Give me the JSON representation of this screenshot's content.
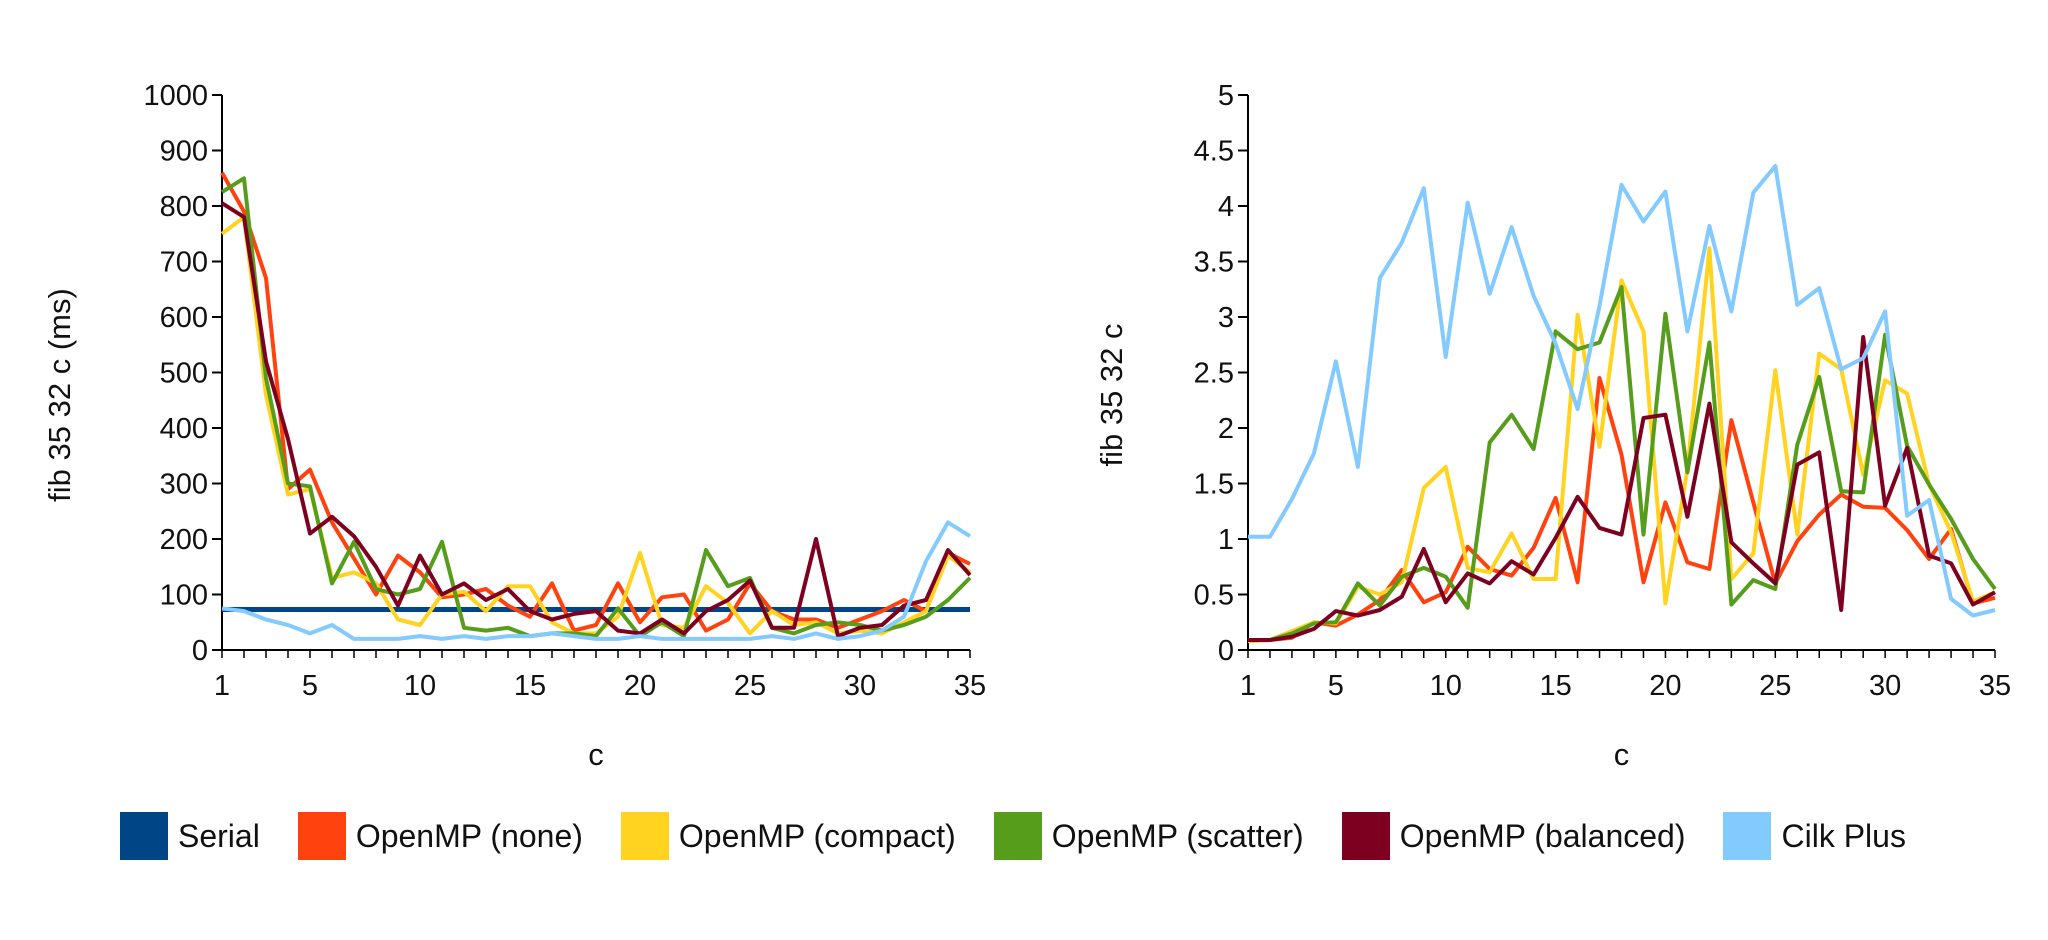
{
  "colors": {
    "Serial": "#004586",
    "OpenMP (none)": "#ff420e",
    "OpenMP (compact)": "#ffd320",
    "OpenMP (scatter)": "#579d1c",
    "OpenMP (balanced)": "#7e0021",
    "Cilk Plus": "#83caff"
  },
  "legend": [
    "Serial",
    "OpenMP (none)",
    "OpenMP (compact)",
    "OpenMP (scatter)",
    "OpenMP (balanced)",
    "Cilk Plus"
  ],
  "chart_data": [
    {
      "type": "line",
      "xlabel": "c",
      "ylabel": "fib 35 32 c (ms)",
      "xlim": [
        1,
        35
      ],
      "ylim": [
        0,
        1000
      ],
      "xticks": [
        1,
        5,
        10,
        15,
        20,
        25,
        30,
        35
      ],
      "yticks": [
        0,
        100,
        200,
        300,
        400,
        500,
        600,
        700,
        800,
        900,
        1000
      ],
      "grid": false,
      "legend_position": "bottom",
      "x": [
        1,
        2,
        3,
        4,
        5,
        6,
        7,
        8,
        9,
        10,
        11,
        12,
        13,
        14,
        15,
        16,
        17,
        18,
        19,
        20,
        21,
        22,
        23,
        24,
        25,
        26,
        27,
        28,
        29,
        30,
        31,
        32,
        33,
        34,
        35
      ],
      "series": [
        {
          "name": "Serial",
          "values": [
            73,
            73,
            73,
            73,
            73,
            73,
            73,
            73,
            73,
            73,
            73,
            73,
            73,
            73,
            73,
            73,
            73,
            73,
            73,
            73,
            73,
            73,
            73,
            73,
            73,
            73,
            73,
            73,
            73,
            73,
            73,
            73,
            73,
            73,
            73
          ]
        },
        {
          "name": "OpenMP (none)",
          "values": [
            860,
            790,
            670,
            290,
            325,
            230,
            165,
            100,
            170,
            140,
            95,
            100,
            110,
            80,
            60,
            120,
            35,
            45,
            120,
            50,
            95,
            100,
            35,
            55,
            120,
            70,
            55,
            55,
            40,
            55,
            70,
            90,
            70,
            175,
            155
          ]
        },
        {
          "name": "OpenMP (compact)",
          "values": [
            750,
            780,
            460,
            280,
            290,
            130,
            140,
            120,
            55,
            45,
            100,
            105,
            70,
            115,
            115,
            50,
            30,
            30,
            60,
            175,
            45,
            40,
            115,
            85,
            30,
            70,
            45,
            50,
            30,
            35,
            30,
            50,
            70,
            170,
            140
          ]
        },
        {
          "name": "OpenMP (scatter)",
          "values": [
            825,
            850,
            490,
            300,
            295,
            120,
            195,
            110,
            100,
            110,
            195,
            40,
            35,
            40,
            25,
            30,
            30,
            25,
            75,
            25,
            50,
            25,
            180,
            115,
            130,
            40,
            30,
            45,
            50,
            45,
            35,
            45,
            60,
            90,
            130
          ]
        },
        {
          "name": "OpenMP (balanced)",
          "values": [
            805,
            780,
            520,
            380,
            210,
            240,
            205,
            150,
            80,
            170,
            100,
            120,
            90,
            110,
            70,
            55,
            65,
            70,
            35,
            30,
            55,
            30,
            70,
            90,
            125,
            40,
            40,
            200,
            25,
            40,
            45,
            80,
            90,
            180,
            135
          ]
        },
        {
          "name": "Cilk Plus",
          "values": [
            75,
            70,
            55,
            45,
            30,
            45,
            20,
            20,
            20,
            25,
            20,
            25,
            20,
            25,
            25,
            30,
            25,
            20,
            20,
            25,
            20,
            20,
            20,
            20,
            20,
            25,
            20,
            30,
            20,
            25,
            35,
            60,
            160,
            230,
            205
          ]
        }
      ]
    },
    {
      "type": "line",
      "xlabel": "c",
      "ylabel": "fib 35 32 c",
      "xlim": [
        1,
        35
      ],
      "ylim": [
        0,
        5
      ],
      "xticks": [
        1,
        5,
        10,
        15,
        20,
        25,
        30,
        35
      ],
      "yticks": [
        0,
        0.5,
        1,
        1.5,
        2,
        2.5,
        3,
        3.5,
        4,
        4.5,
        5
      ],
      "grid": false,
      "legend_position": "bottom",
      "x": [
        1,
        2,
        3,
        4,
        5,
        6,
        7,
        8,
        9,
        10,
        11,
        12,
        13,
        14,
        15,
        16,
        17,
        18,
        19,
        20,
        21,
        22,
        23,
        24,
        25,
        26,
        27,
        28,
        29,
        30,
        31,
        32,
        33,
        34,
        35
      ],
      "series": [
        {
          "name": "OpenMP (none)",
          "values": [
            0.08,
            0.09,
            0.11,
            0.25,
            0.22,
            0.32,
            0.45,
            0.72,
            0.43,
            0.52,
            0.93,
            0.73,
            0.67,
            0.92,
            1.37,
            0.61,
            2.45,
            1.76,
            0.61,
            1.33,
            0.79,
            0.73,
            2.07,
            1.33,
            0.6,
            0.98,
            1.22,
            1.4,
            1.29,
            1.28,
            1.08,
            0.82,
            1.09,
            0.42,
            0.47
          ]
        },
        {
          "name": "OpenMP (compact)",
          "values": [
            0.08,
            0.09,
            0.17,
            0.25,
            0.24,
            0.57,
            0.5,
            0.61,
            1.46,
            1.65,
            0.74,
            0.7,
            1.05,
            0.64,
            0.64,
            3.02,
            1.83,
            3.33,
            2.87,
            0.42,
            1.63,
            3.62,
            0.64,
            0.87,
            2.52,
            1.04,
            2.67,
            2.53,
            1.58,
            2.43,
            2.31,
            1.49,
            1.06,
            0.44,
            0.52
          ]
        },
        {
          "name": "OpenMP (scatter)",
          "values": [
            0.09,
            0.09,
            0.15,
            0.24,
            0.25,
            0.6,
            0.4,
            0.66,
            0.74,
            0.66,
            0.38,
            1.87,
            2.12,
            1.81,
            2.87,
            2.71,
            2.77,
            3.27,
            1.04,
            3.03,
            1.6,
            2.77,
            0.41,
            0.63,
            0.55,
            1.85,
            2.46,
            1.43,
            1.42,
            2.84,
            1.84,
            1.49,
            1.18,
            0.82,
            0.55
          ]
        },
        {
          "name": "OpenMP (balanced)",
          "values": [
            0.09,
            0.09,
            0.12,
            0.19,
            0.35,
            0.31,
            0.36,
            0.48,
            0.91,
            0.43,
            0.69,
            0.6,
            0.8,
            0.68,
            1.01,
            1.38,
            1.1,
            1.04,
            2.09,
            2.12,
            1.2,
            2.22,
            0.97,
            0.78,
            0.6,
            1.67,
            1.78,
            0.36,
            2.82,
            1.3,
            1.82,
            0.85,
            0.78,
            0.41,
            0.52
          ]
        },
        {
          "name": "Cilk Plus",
          "values": [
            1.02,
            1.02,
            1.36,
            1.77,
            2.6,
            1.65,
            3.35,
            3.67,
            4.16,
            2.64,
            4.03,
            3.21,
            3.81,
            3.19,
            2.76,
            2.17,
            3.1,
            4.19,
            3.86,
            4.13,
            2.87,
            3.82,
            3.05,
            4.12,
            4.36,
            3.11,
            3.26,
            2.53,
            2.63,
            3.05,
            1.21,
            1.35,
            0.46,
            0.31,
            0.36
          ]
        }
      ]
    }
  ]
}
